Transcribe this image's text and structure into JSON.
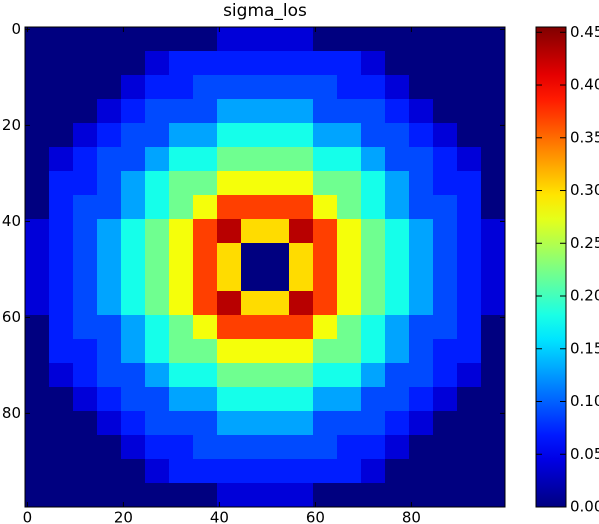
{
  "chart_data": {
    "type": "heatmap",
    "title": "sigma_los",
    "colormap": "jet",
    "x": [
      2,
      7,
      12,
      17,
      22,
      27,
      32,
      37,
      42,
      47,
      52,
      57,
      62,
      67,
      72,
      77,
      82,
      87,
      92,
      97
    ],
    "y": [
      2,
      7,
      12,
      17,
      22,
      27,
      32,
      37,
      42,
      47,
      52,
      57,
      62,
      67,
      72,
      77,
      82,
      87,
      92,
      97
    ],
    "xlim": [
      -0.5,
      99.5
    ],
    "ylim": [
      99.5,
      -0.5
    ],
    "xticks": [
      0,
      20,
      40,
      60,
      80
    ],
    "yticks": [
      0,
      20,
      40,
      60,
      80
    ],
    "clim": [
      0,
      0.455
    ],
    "cticks": [
      {
        "value": 0,
        "label": "0.00"
      },
      0.05,
      {
        "value": 0.1,
        "label": "0.10"
      },
      0.15,
      {
        "value": 0.2,
        "label": "0.20"
      },
      0.25,
      {
        "value": 0.3,
        "label": "0.30"
      },
      0.35,
      {
        "value": 0.4,
        "label": "0.40"
      },
      0.45
    ],
    "z": [
      [
        0,
        0,
        0,
        0,
        0,
        0,
        0,
        0,
        0.04,
        0.04,
        0.04,
        0.04,
        0,
        0,
        0,
        0,
        0,
        0,
        0,
        0
      ],
      [
        0,
        0,
        0,
        0,
        0,
        0.04,
        0.07,
        0.07,
        0.07,
        0.07,
        0.07,
        0.07,
        0.07,
        0.07,
        0.04,
        0,
        0,
        0,
        0,
        0
      ],
      [
        0,
        0,
        0,
        0,
        0.04,
        0.07,
        0.07,
        0.09,
        0.09,
        0.09,
        0.09,
        0.09,
        0.09,
        0.07,
        0.07,
        0.04,
        0,
        0,
        0,
        0
      ],
      [
        0,
        0,
        0,
        0.04,
        0.07,
        0.09,
        0.09,
        0.09,
        0.13,
        0.13,
        0.13,
        0.13,
        0.09,
        0.09,
        0.09,
        0.07,
        0.04,
        0,
        0,
        0
      ],
      [
        0,
        0,
        0.04,
        0.07,
        0.09,
        0.09,
        0.13,
        0.13,
        0.18,
        0.18,
        0.18,
        0.18,
        0.13,
        0.13,
        0.09,
        0.09,
        0.07,
        0.04,
        0,
        0
      ],
      [
        0,
        0.04,
        0.07,
        0.09,
        0.09,
        0.13,
        0.18,
        0.18,
        0.22,
        0.22,
        0.22,
        0.22,
        0.18,
        0.18,
        0.13,
        0.09,
        0.09,
        0.07,
        0.04,
        0
      ],
      [
        0,
        0.07,
        0.07,
        0.09,
        0.13,
        0.18,
        0.22,
        0.22,
        0.28,
        0.28,
        0.28,
        0.28,
        0.22,
        0.22,
        0.18,
        0.13,
        0.09,
        0.07,
        0.07,
        0
      ],
      [
        0,
        0.07,
        0.09,
        0.09,
        0.13,
        0.18,
        0.22,
        0.28,
        0.37,
        0.37,
        0.37,
        0.37,
        0.28,
        0.22,
        0.18,
        0.13,
        0.09,
        0.09,
        0.07,
        0
      ],
      [
        0.04,
        0.07,
        0.09,
        0.13,
        0.18,
        0.22,
        0.28,
        0.37,
        0.43,
        0.3,
        0.3,
        0.43,
        0.37,
        0.28,
        0.22,
        0.18,
        0.13,
        0.09,
        0.07,
        0.04
      ],
      [
        0.04,
        0.07,
        0.09,
        0.13,
        0.18,
        0.22,
        0.28,
        0.37,
        0.3,
        0,
        0,
        0.3,
        0.37,
        0.28,
        0.22,
        0.18,
        0.13,
        0.09,
        0.07,
        0.04
      ],
      [
        0.04,
        0.07,
        0.09,
        0.13,
        0.18,
        0.22,
        0.28,
        0.37,
        0.3,
        0,
        0,
        0.3,
        0.37,
        0.28,
        0.22,
        0.18,
        0.13,
        0.09,
        0.07,
        0.04
      ],
      [
        0.04,
        0.07,
        0.09,
        0.13,
        0.18,
        0.22,
        0.28,
        0.37,
        0.43,
        0.3,
        0.3,
        0.43,
        0.37,
        0.28,
        0.22,
        0.18,
        0.13,
        0.09,
        0.07,
        0.04
      ],
      [
        0,
        0.07,
        0.09,
        0.09,
        0.13,
        0.18,
        0.22,
        0.28,
        0.37,
        0.37,
        0.37,
        0.37,
        0.28,
        0.22,
        0.18,
        0.13,
        0.09,
        0.09,
        0.07,
        0
      ],
      [
        0,
        0.07,
        0.07,
        0.09,
        0.13,
        0.18,
        0.22,
        0.22,
        0.28,
        0.28,
        0.28,
        0.28,
        0.22,
        0.22,
        0.18,
        0.13,
        0.09,
        0.07,
        0.07,
        0
      ],
      [
        0,
        0.04,
        0.07,
        0.09,
        0.09,
        0.13,
        0.18,
        0.18,
        0.22,
        0.22,
        0.22,
        0.22,
        0.18,
        0.18,
        0.13,
        0.09,
        0.09,
        0.07,
        0.04,
        0
      ],
      [
        0,
        0,
        0.04,
        0.07,
        0.09,
        0.09,
        0.13,
        0.13,
        0.18,
        0.18,
        0.18,
        0.18,
        0.13,
        0.13,
        0.09,
        0.09,
        0.07,
        0.04,
        0,
        0
      ],
      [
        0,
        0,
        0,
        0.04,
        0.07,
        0.09,
        0.09,
        0.09,
        0.13,
        0.13,
        0.13,
        0.13,
        0.09,
        0.09,
        0.09,
        0.07,
        0.04,
        0,
        0,
        0
      ],
      [
        0,
        0,
        0,
        0,
        0.04,
        0.07,
        0.07,
        0.09,
        0.09,
        0.09,
        0.09,
        0.09,
        0.09,
        0.07,
        0.07,
        0.04,
        0,
        0,
        0,
        0
      ],
      [
        0,
        0,
        0,
        0,
        0,
        0.04,
        0.07,
        0.07,
        0.07,
        0.07,
        0.07,
        0.07,
        0.07,
        0.07,
        0.04,
        0,
        0,
        0,
        0,
        0
      ],
      [
        0,
        0,
        0,
        0,
        0,
        0,
        0,
        0,
        0.04,
        0.04,
        0.04,
        0.04,
        0,
        0,
        0,
        0,
        0,
        0,
        0,
        0
      ]
    ]
  }
}
